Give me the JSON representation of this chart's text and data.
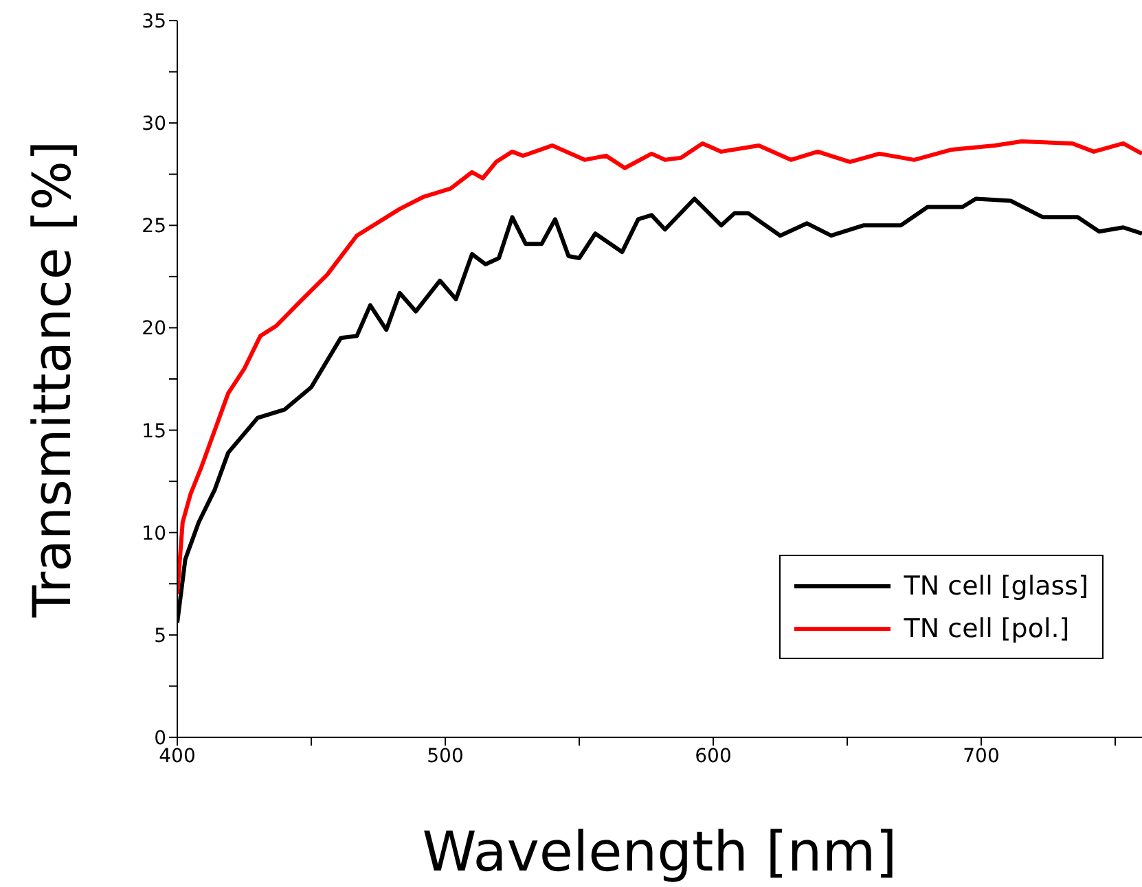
{
  "chart_data": {
    "type": "line",
    "xlabel": "Wavelength [nm]",
    "ylabel": "Transmittance [%]",
    "xlim": [
      400,
      760
    ],
    "xticks": [
      400,
      {
        "value": 450,
        "label": null
      },
      500,
      {
        "value": 550,
        "label": null
      },
      600,
      {
        "value": 650,
        "label": null
      },
      700,
      {
        "value": 750,
        "label": null
      }
    ],
    "ylim": [
      0,
      35
    ],
    "yticks": [
      0,
      {
        "value": 2.5,
        "label": null
      },
      5,
      {
        "value": 7.5,
        "label": null
      },
      10,
      {
        "value": 12.5,
        "label": null
      },
      15,
      {
        "value": 17.5,
        "label": null
      },
      20,
      {
        "value": 22.5,
        "label": null
      },
      25,
      {
        "value": 27.5,
        "label": null
      },
      30,
      {
        "value": 32.5,
        "label": null
      },
      35
    ],
    "grid": false,
    "legend": "bottom right",
    "marker": "none",
    "line_style": "solid",
    "series": [
      {
        "name": "TN cell [glass]",
        "color": "#000000",
        "x": [
          400,
          403,
          408,
          414,
          419,
          430,
          440,
          450,
          461,
          467,
          472,
          478,
          483,
          489,
          498,
          504,
          510,
          515,
          520,
          525,
          530,
          536,
          541,
          546,
          550,
          556,
          566,
          572,
          577,
          582,
          593,
          603,
          608,
          613,
          625,
          635,
          644,
          656,
          670,
          680,
          693,
          698,
          711,
          723,
          736,
          744,
          753,
          760
        ],
        "values": [
          5.6,
          8.7,
          10.5,
          12.1,
          13.9,
          15.6,
          16.0,
          17.1,
          19.5,
          19.6,
          21.1,
          19.9,
          21.7,
          20.8,
          22.3,
          21.4,
          23.6,
          23.1,
          23.4,
          25.4,
          24.1,
          24.1,
          25.3,
          23.5,
          23.4,
          24.6,
          23.7,
          25.3,
          25.5,
          24.8,
          26.3,
          25.0,
          25.6,
          25.6,
          24.5,
          25.1,
          24.5,
          25.0,
          25.0,
          25.9,
          25.9,
          26.3,
          26.2,
          25.4,
          25.4,
          24.7,
          24.9,
          24.6
        ]
      },
      {
        "name": "TN cell [pol.]",
        "color": "#ff0000",
        "x": [
          400,
          402,
          405,
          409,
          414,
          419,
          425,
          431,
          437,
          446,
          456,
          467,
          483,
          492,
          502,
          510,
          514,
          519,
          525,
          529,
          540,
          552,
          560,
          567,
          577,
          582,
          588,
          596,
          603,
          617,
          629,
          639,
          651,
          662,
          675,
          689,
          705,
          715,
          734,
          742,
          753,
          760
        ],
        "values": [
          7.0,
          10.5,
          11.9,
          13.2,
          15.0,
          16.8,
          18.0,
          19.6,
          20.1,
          21.3,
          22.6,
          24.5,
          25.8,
          26.4,
          26.8,
          27.6,
          27.3,
          28.1,
          28.6,
          28.4,
          28.9,
          28.2,
          28.4,
          27.8,
          28.5,
          28.2,
          28.3,
          29.0,
          28.6,
          28.9,
          28.2,
          28.6,
          28.1,
          28.5,
          28.2,
          28.7,
          28.9,
          29.1,
          29.0,
          28.6,
          29.0,
          28.5
        ]
      }
    ]
  }
}
